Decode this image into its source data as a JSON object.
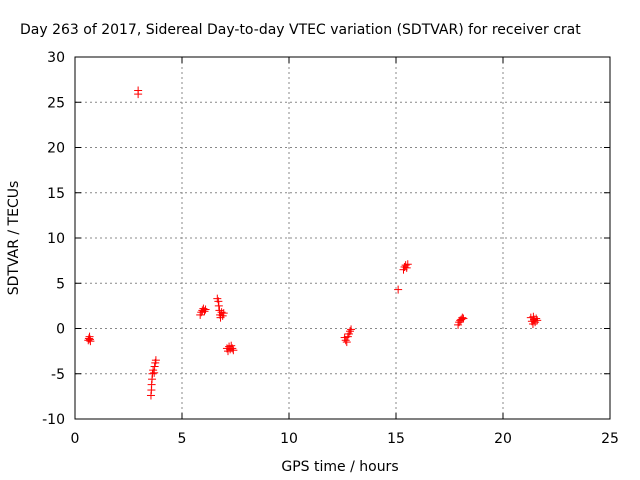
{
  "chart_data": {
    "type": "scatter",
    "title": "Day 263 of 2017, Sidereal Day-to-day VTEC variation (SDTVAR) for receiver crat",
    "xlabel": "GPS time / hours",
    "ylabel": "SDTVAR / TECUs",
    "xlim": [
      0,
      25
    ],
    "ylim": [
      -10,
      30
    ],
    "xticks": [
      0,
      5,
      10,
      15,
      20,
      25
    ],
    "yticks": [
      -10,
      -5,
      0,
      5,
      10,
      15,
      20,
      25,
      30
    ],
    "grid": true,
    "marker": "+",
    "color": "#ff0000",
    "series": [
      {
        "name": "SDTVAR",
        "points": [
          [
            0.62,
            -1.3
          ],
          [
            0.65,
            -1.1
          ],
          [
            0.68,
            -0.9
          ],
          [
            0.7,
            -1.2
          ],
          [
            0.72,
            -1.4
          ],
          [
            2.95,
            26.3
          ],
          [
            2.95,
            25.9
          ],
          [
            3.55,
            -7.4
          ],
          [
            3.57,
            -6.8
          ],
          [
            3.58,
            -6.2
          ],
          [
            3.6,
            -5.6
          ],
          [
            3.62,
            -5.0
          ],
          [
            3.65,
            -4.6
          ],
          [
            3.7,
            -4.9
          ],
          [
            3.72,
            -4.2
          ],
          [
            3.75,
            -3.8
          ],
          [
            3.78,
            -3.5
          ],
          [
            5.85,
            1.5
          ],
          [
            5.9,
            1.8
          ],
          [
            5.95,
            2.0
          ],
          [
            6.0,
            2.2
          ],
          [
            6.05,
            1.9
          ],
          [
            6.1,
            2.1
          ],
          [
            6.65,
            3.3
          ],
          [
            6.7,
            3.0
          ],
          [
            6.72,
            2.5
          ],
          [
            6.75,
            2.0
          ],
          [
            6.78,
            1.5
          ],
          [
            6.8,
            1.2
          ],
          [
            6.85,
            1.8
          ],
          [
            6.9,
            1.4
          ],
          [
            6.95,
            1.7
          ],
          [
            7.1,
            -2.2
          ],
          [
            7.15,
            -2.5
          ],
          [
            7.2,
            -2.0
          ],
          [
            7.25,
            -2.3
          ],
          [
            7.3,
            -1.9
          ],
          [
            7.35,
            -2.2
          ],
          [
            7.4,
            -2.4
          ],
          [
            12.6,
            -1.0
          ],
          [
            12.65,
            -1.3
          ],
          [
            12.7,
            -1.5
          ],
          [
            12.75,
            -0.9
          ],
          [
            12.8,
            -0.6
          ],
          [
            12.85,
            -0.3
          ],
          [
            12.9,
            -0.1
          ],
          [
            15.1,
            4.3
          ],
          [
            15.35,
            6.5
          ],
          [
            15.4,
            6.8
          ],
          [
            15.45,
            7.0
          ],
          [
            15.5,
            6.7
          ],
          [
            15.55,
            7.1
          ],
          [
            17.9,
            0.4
          ],
          [
            17.95,
            0.7
          ],
          [
            18.0,
            0.9
          ],
          [
            18.05,
            1.0
          ],
          [
            18.1,
            1.2
          ],
          [
            18.15,
            1.1
          ],
          [
            21.3,
            1.2
          ],
          [
            21.35,
            0.8
          ],
          [
            21.4,
            0.5
          ],
          [
            21.45,
            1.0
          ],
          [
            21.5,
            0.7
          ],
          [
            21.55,
            1.1
          ],
          [
            21.6,
            0.9
          ],
          [
            21.42,
            1.3
          ]
        ]
      }
    ]
  }
}
